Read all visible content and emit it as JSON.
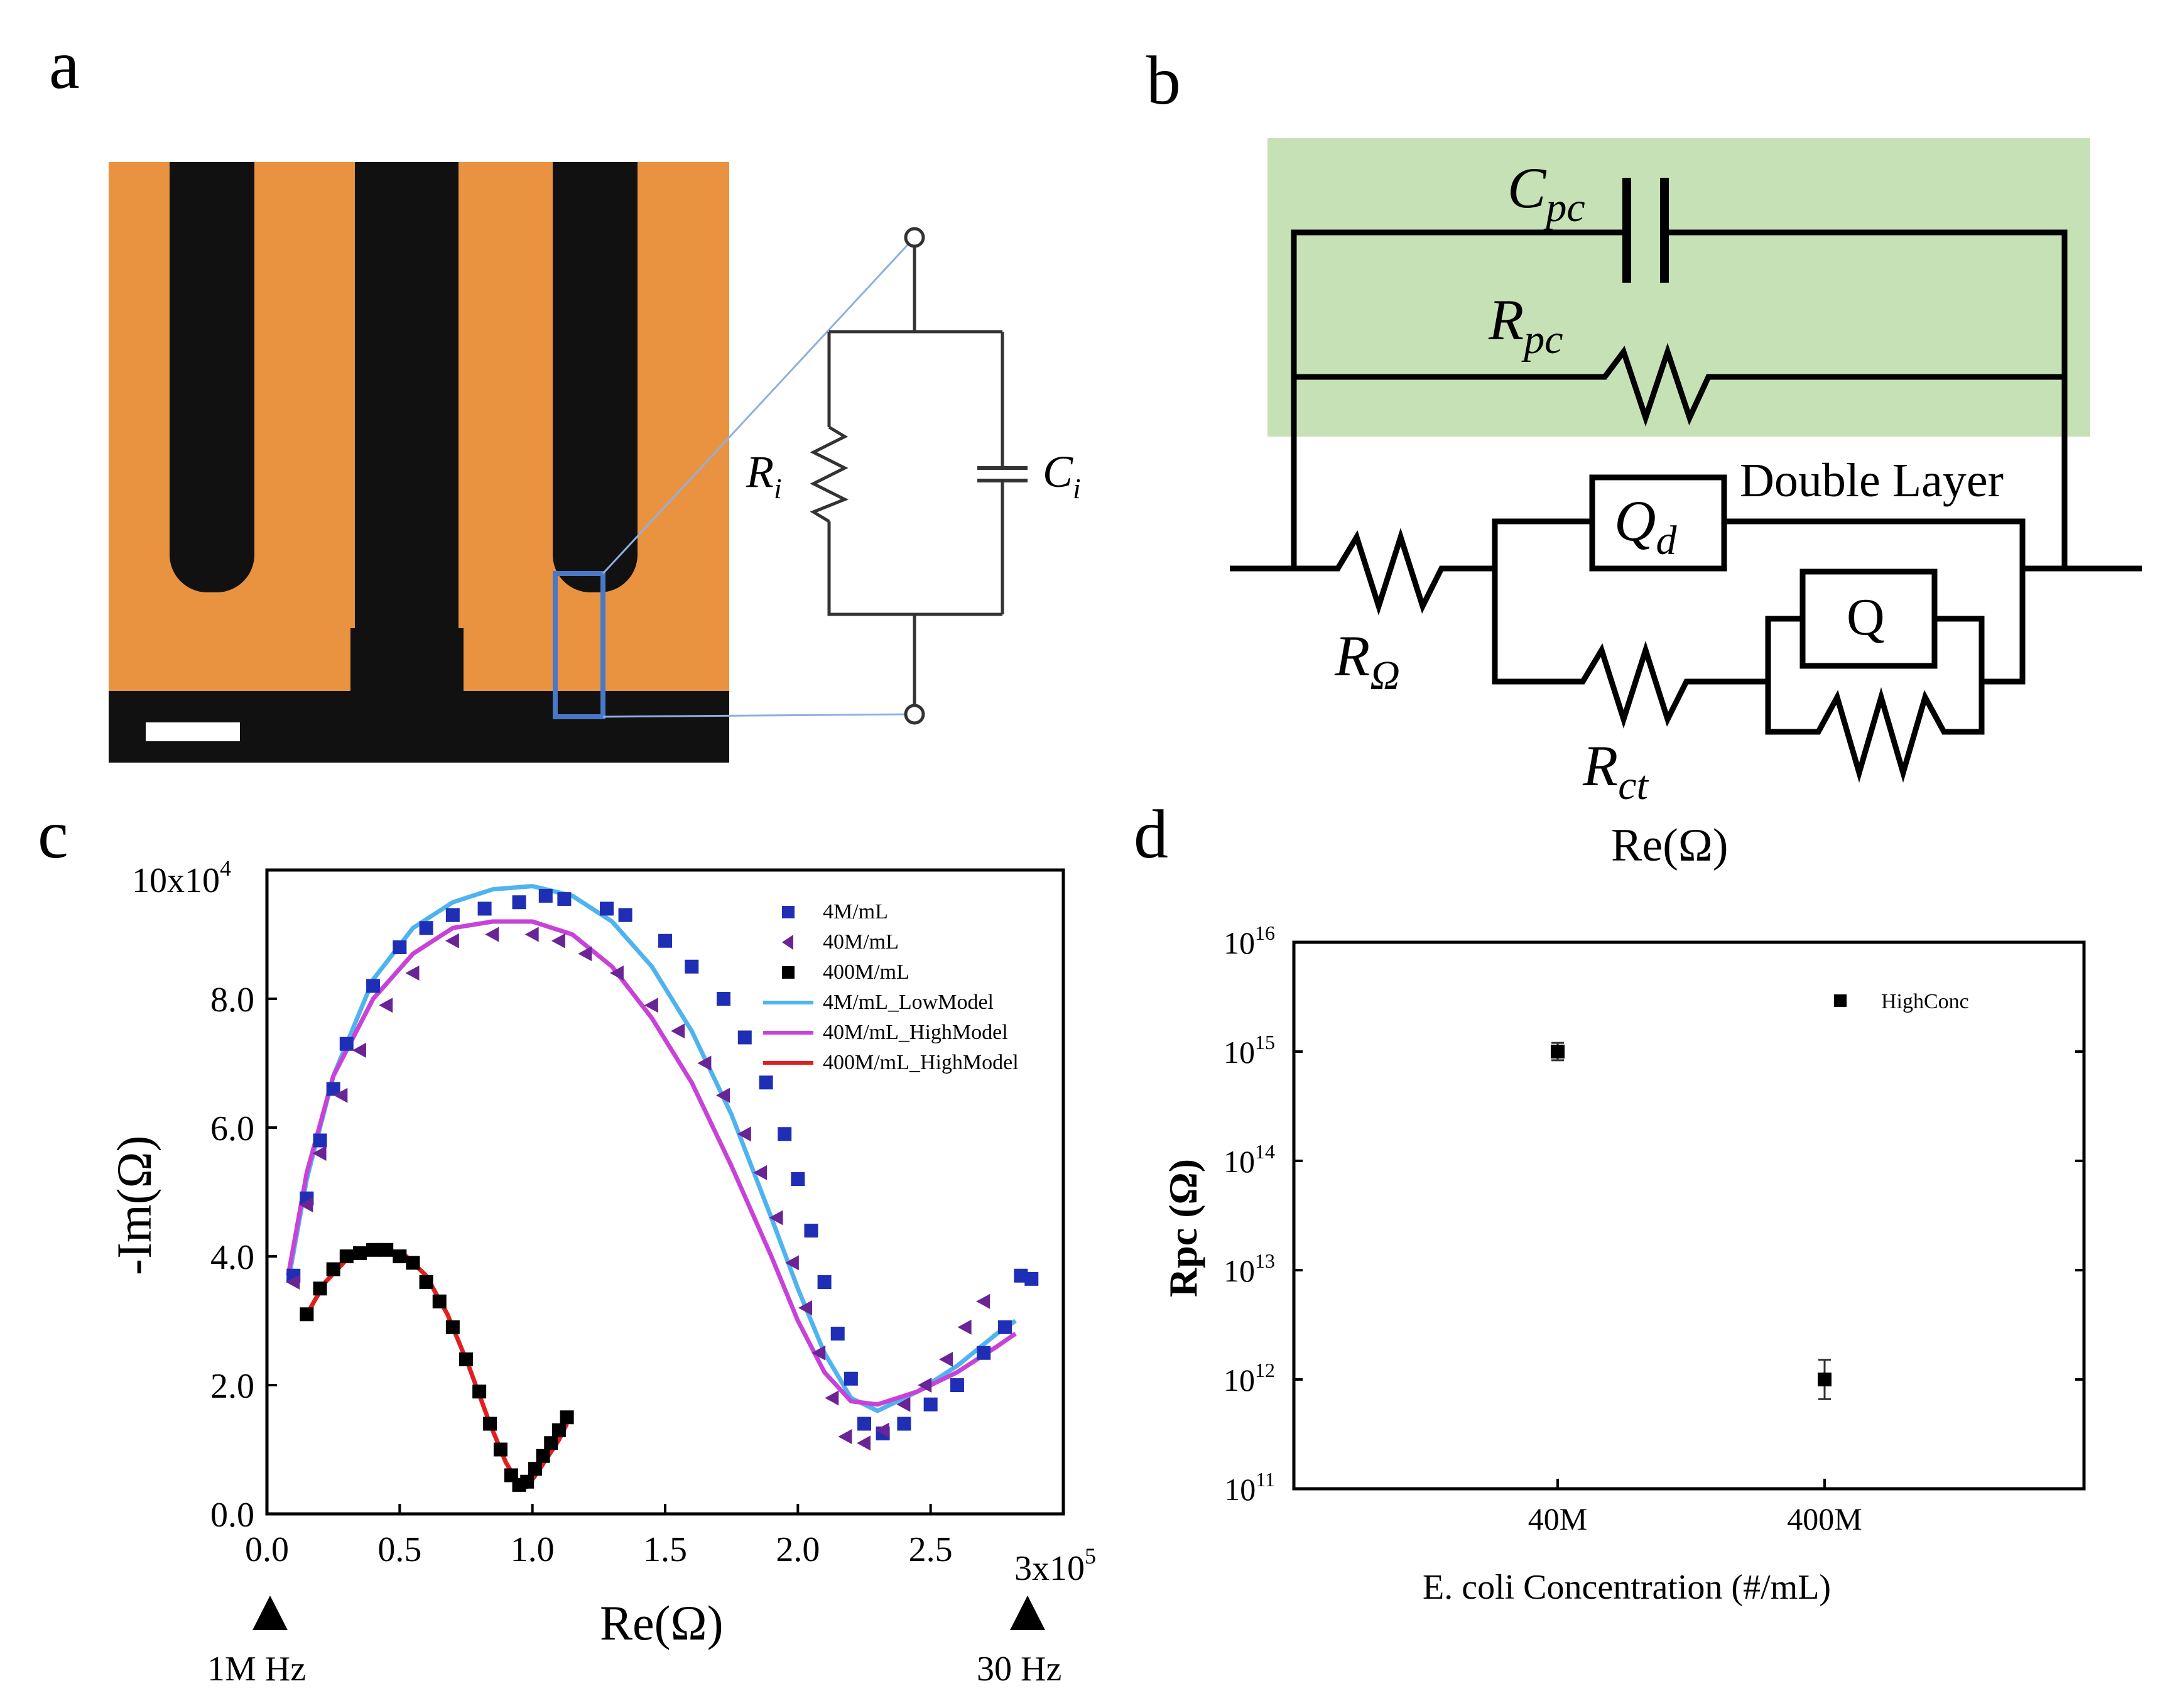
{
  "panels": {
    "a": {
      "letter": "a",
      "circuit": {
        "resistor_label": "R",
        "resistor_sub": "i",
        "capacitor_label": "C",
        "capacitor_sub": "i"
      }
    },
    "b": {
      "letter": "b",
      "labels": {
        "cpc": "C",
        "cpc_sub": "pc",
        "rpc": "R",
        "rpc_sub": "pc",
        "qd": "Q",
        "qd_sub": "d",
        "double_layer": "Double Layer",
        "q": "Q",
        "romega": "R",
        "romega_sub": "Ω",
        "rct": "R",
        "rct_sub": "ct",
        "stray_label": "Re(Ω)"
      },
      "colors": {
        "highlight": "#c5e1b5"
      }
    },
    "c": {
      "letter": "c",
      "y_exponent_label": "10x10",
      "y_exponent_power": "4",
      "x_exponent_label": "3x10",
      "x_exponent_power": "5",
      "freq_markers": [
        "1M Hz",
        "30 Hz"
      ]
    },
    "d": {
      "letter": "d"
    }
  },
  "chart_data": [
    {
      "type": "scatter",
      "panel": "c",
      "title": "",
      "xlabel": "Re(Ω)",
      "ylabel": "-Im(Ω)",
      "xlim": [
        0,
        3.0
      ],
      "ylim": [
        0,
        10.0
      ],
      "x_unit_multiplier": "x10^5",
      "y_unit_multiplier": "x10^4",
      "xticks": [
        "0.0",
        "0.5",
        "1.0",
        "1.5",
        "2.0",
        "2.5"
      ],
      "xtick_values": [
        0,
        0.5,
        1.0,
        1.5,
        2.0,
        2.5
      ],
      "yticks": [
        "0.0",
        "2.0",
        "4.0",
        "6.0",
        "8.0"
      ],
      "ytick_values": [
        0,
        2,
        4,
        6,
        8
      ],
      "legend_position": "top-right",
      "series": [
        {
          "name": "4M/mL",
          "kind": "points",
          "marker": "square",
          "color": "#1f2fb5",
          "x": [
            0.1,
            0.15,
            0.2,
            0.25,
            0.3,
            0.4,
            0.5,
            0.6,
            0.7,
            0.82,
            0.95,
            1.05,
            1.12,
            1.28,
            1.35,
            1.5,
            1.6,
            1.72,
            1.8,
            1.88,
            1.95,
            2.0,
            2.05,
            2.1,
            2.15,
            2.2,
            2.25,
            2.32,
            2.4,
            2.5,
            2.6,
            2.7,
            2.78,
            2.84,
            2.88
          ],
          "y": [
            3.7,
            4.9,
            5.8,
            6.6,
            7.3,
            8.2,
            8.8,
            9.1,
            9.3,
            9.4,
            9.5,
            9.6,
            9.55,
            9.4,
            9.3,
            8.9,
            8.5,
            8.0,
            7.4,
            6.7,
            5.9,
            5.2,
            4.4,
            3.6,
            2.8,
            2.1,
            1.4,
            1.25,
            1.4,
            1.7,
            2.0,
            2.5,
            2.9,
            3.7,
            3.65
          ]
        },
        {
          "name": "40M/mL",
          "kind": "points",
          "marker": "triangle-left",
          "color": "#6a2496",
          "x": [
            0.1,
            0.15,
            0.2,
            0.28,
            0.35,
            0.45,
            0.55,
            0.7,
            0.85,
            1.0,
            1.1,
            1.2,
            1.32,
            1.45,
            1.55,
            1.65,
            1.72,
            1.8,
            1.86,
            1.92,
            1.98,
            2.03,
            2.08,
            2.13,
            2.18,
            2.25,
            2.32,
            2.4,
            2.48,
            2.56,
            2.63,
            2.7
          ],
          "y": [
            3.6,
            4.8,
            5.6,
            6.5,
            7.2,
            7.9,
            8.4,
            8.9,
            9.0,
            9.0,
            8.9,
            8.7,
            8.4,
            7.9,
            7.5,
            7.0,
            6.5,
            5.9,
            5.3,
            4.6,
            3.9,
            3.2,
            2.5,
            1.8,
            1.2,
            1.1,
            1.3,
            1.7,
            2.0,
            2.4,
            2.9,
            3.3
          ]
        },
        {
          "name": "400M/mL",
          "kind": "points",
          "marker": "square",
          "color": "#000000",
          "x": [
            0.15,
            0.2,
            0.25,
            0.3,
            0.35,
            0.4,
            0.45,
            0.5,
            0.55,
            0.6,
            0.65,
            0.7,
            0.75,
            0.8,
            0.84,
            0.88,
            0.92,
            0.95,
            0.98,
            1.01,
            1.04,
            1.07,
            1.1,
            1.13
          ],
          "y": [
            3.1,
            3.5,
            3.8,
            4.0,
            4.05,
            4.1,
            4.1,
            4.0,
            3.9,
            3.6,
            3.3,
            2.9,
            2.4,
            1.9,
            1.4,
            1.0,
            0.6,
            0.45,
            0.5,
            0.7,
            0.9,
            1.1,
            1.3,
            1.5
          ]
        },
        {
          "name": "4M/mL_LowModel",
          "kind": "line",
          "color": "#4fb4ee",
          "x": [
            0.08,
            0.15,
            0.25,
            0.4,
            0.55,
            0.7,
            0.85,
            1.0,
            1.15,
            1.3,
            1.45,
            1.6,
            1.75,
            1.9,
            2.0,
            2.1,
            2.2,
            2.3,
            2.45,
            2.6,
            2.75,
            2.82
          ],
          "y": [
            3.6,
            5.2,
            6.8,
            8.3,
            9.1,
            9.5,
            9.7,
            9.75,
            9.6,
            9.2,
            8.5,
            7.5,
            6.2,
            4.6,
            3.5,
            2.5,
            1.8,
            1.6,
            1.9,
            2.3,
            2.8,
            3.0
          ]
        },
        {
          "name": "40M/mL_HighModel",
          "kind": "line",
          "color": "#c842d8",
          "x": [
            0.08,
            0.15,
            0.25,
            0.4,
            0.55,
            0.7,
            0.85,
            1.0,
            1.15,
            1.3,
            1.45,
            1.6,
            1.75,
            1.9,
            2.0,
            2.1,
            2.2,
            2.3,
            2.45,
            2.6,
            2.75,
            2.82
          ],
          "y": [
            3.7,
            5.3,
            6.8,
            8.0,
            8.7,
            9.1,
            9.2,
            9.2,
            9.0,
            8.5,
            7.7,
            6.7,
            5.4,
            4.0,
            3.0,
            2.2,
            1.75,
            1.7,
            1.9,
            2.2,
            2.6,
            2.8
          ]
        },
        {
          "name": "400M/mL_HighModel",
          "kind": "line",
          "color": "#e02020",
          "x": [
            0.15,
            0.22,
            0.3,
            0.38,
            0.45,
            0.52,
            0.6,
            0.68,
            0.76,
            0.84,
            0.9,
            0.95,
            0.98,
            1.02,
            1.06,
            1.1,
            1.13
          ],
          "y": [
            3.1,
            3.6,
            3.95,
            4.08,
            4.1,
            4.02,
            3.7,
            3.1,
            2.3,
            1.4,
            0.8,
            0.45,
            0.42,
            0.65,
            0.9,
            1.15,
            1.4
          ]
        }
      ]
    },
    {
      "type": "scatter",
      "panel": "d",
      "title": "",
      "xlabel": "E. coli Concentration (#/mL)",
      "ylabel": "Rpc (Ω)",
      "y_scale": "log",
      "ylim_exponents": [
        11,
        16
      ],
      "ytick_labels": [
        {
          "base": "10",
          "power": "16"
        },
        {
          "base": "10",
          "power": "15"
        },
        {
          "base": "10",
          "power": "14"
        },
        {
          "base": "10",
          "power": "13"
        },
        {
          "base": "10",
          "power": "12"
        },
        {
          "base": "10",
          "power": "11"
        }
      ],
      "ytick_exponents": [
        16,
        15,
        14,
        13,
        12,
        11
      ],
      "categories": [
        "40M",
        "400M"
      ],
      "legend_position": "top-right",
      "series": [
        {
          "name": "HighConc",
          "marker": "square",
          "color": "#000000",
          "values_log10": [
            15.0,
            12.0
          ],
          "error_log10": [
            0.08,
            0.18
          ]
        }
      ]
    }
  ]
}
